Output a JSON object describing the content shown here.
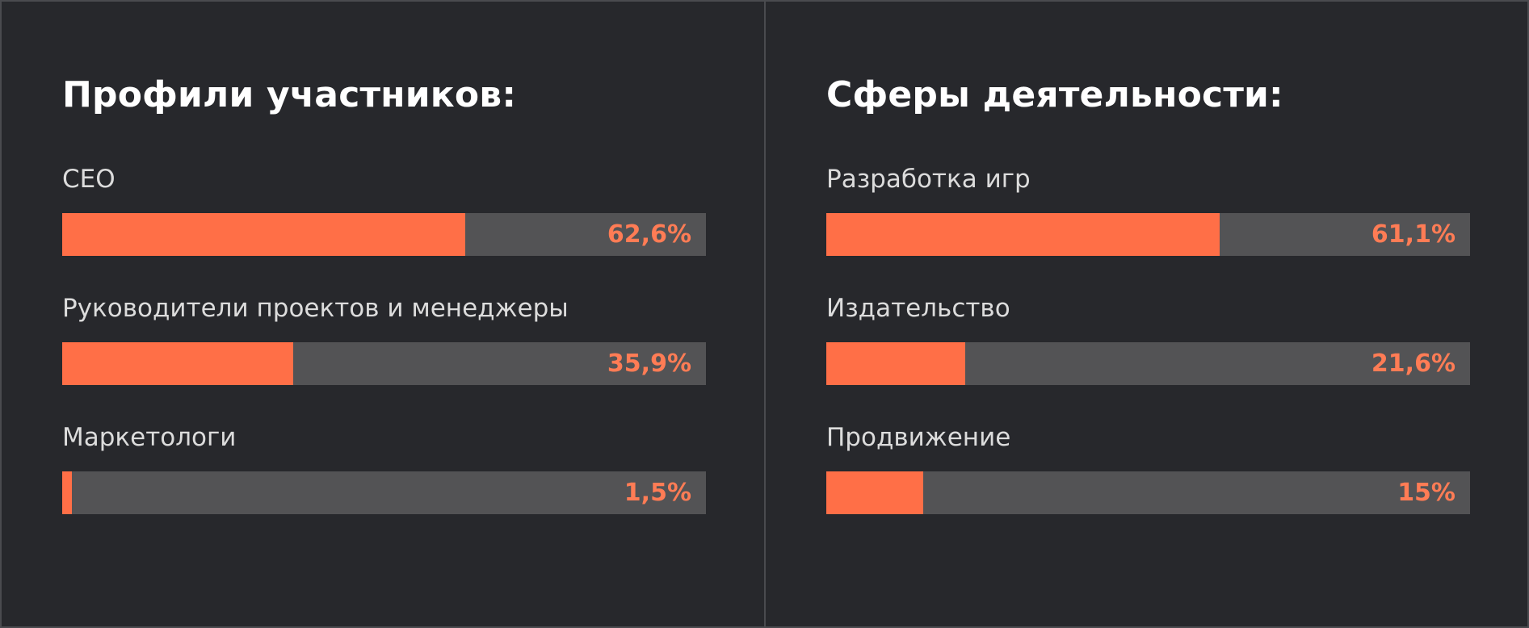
{
  "colors": {
    "background": "#27282c",
    "track": "#535355",
    "fill": "#ff6f47",
    "value_text": "#ff7c55"
  },
  "chart_data": [
    {
      "type": "bar",
      "orientation": "horizontal",
      "title": "Профили участников:",
      "categories": [
        "CEO",
        "Руководители проектов и менеджеры",
        "Маркетологи"
      ],
      "values": [
        62.6,
        35.9,
        1.5
      ],
      "value_labels": [
        "62,6%",
        "35,9%",
        "1,5%"
      ],
      "unit": "%",
      "xlim": [
        0,
        100
      ],
      "grid": false,
      "legend": "none"
    },
    {
      "type": "bar",
      "orientation": "horizontal",
      "title": "Сферы деятельности:",
      "categories": [
        "Разработка игр",
        "Издательство",
        "Продвижение"
      ],
      "values": [
        61.1,
        21.6,
        15
      ],
      "value_labels": [
        "61,1%",
        "21,6%",
        "15%"
      ],
      "unit": "%",
      "xlim": [
        0,
        100
      ],
      "grid": false,
      "legend": "none"
    }
  ]
}
